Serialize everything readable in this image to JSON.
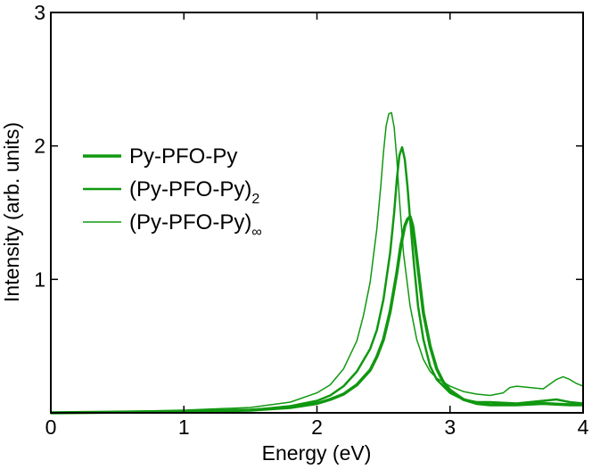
{
  "chart_data": {
    "type": "line",
    "xlabel": "Energy (eV)",
    "ylabel": "Intensity (arb. units)",
    "xlim": [
      0,
      4
    ],
    "ylim": [
      0,
      3
    ],
    "x_ticks": [
      0,
      1,
      2,
      3,
      4
    ],
    "y_ticks": [
      1,
      2,
      3
    ],
    "grid": false,
    "legend_position": "center-left",
    "line_color": "#109810",
    "series": [
      {
        "name": "Py-PFO-Py",
        "legend_main": "Py-PFO-Py",
        "legend_sub": "",
        "style": "thick",
        "x": [
          0.0,
          1.0,
          1.5,
          1.8,
          2.0,
          2.1,
          2.2,
          2.3,
          2.4,
          2.45,
          2.5,
          2.55,
          2.6,
          2.63,
          2.66,
          2.68,
          2.7,
          2.72,
          2.74,
          2.77,
          2.8,
          2.85,
          2.9,
          2.95,
          3.0,
          3.1,
          3.2,
          3.3,
          3.5,
          3.7,
          3.9,
          4.0
        ],
        "values": [
          0.0,
          0.01,
          0.02,
          0.04,
          0.07,
          0.1,
          0.14,
          0.21,
          0.32,
          0.42,
          0.55,
          0.76,
          1.05,
          1.25,
          1.4,
          1.45,
          1.47,
          1.4,
          1.25,
          1.0,
          0.75,
          0.5,
          0.33,
          0.23,
          0.17,
          0.1,
          0.07,
          0.06,
          0.06,
          0.07,
          0.06,
          0.06
        ]
      },
      {
        "name": "(Py-PFO-Py)2",
        "legend_main": "(Py-PFO-Py)",
        "legend_sub": "2",
        "style": "medium",
        "x": [
          0.0,
          1.0,
          1.5,
          1.8,
          2.0,
          2.1,
          2.2,
          2.3,
          2.4,
          2.45,
          2.5,
          2.55,
          2.58,
          2.6,
          2.62,
          2.64,
          2.66,
          2.68,
          2.7,
          2.73,
          2.76,
          2.8,
          2.85,
          2.9,
          3.0,
          3.1,
          3.2,
          3.3,
          3.5,
          3.7,
          3.8,
          3.9,
          4.0
        ],
        "values": [
          0.0,
          0.01,
          0.02,
          0.05,
          0.09,
          0.13,
          0.2,
          0.31,
          0.48,
          0.62,
          0.85,
          1.2,
          1.5,
          1.75,
          1.93,
          1.99,
          1.9,
          1.7,
          1.45,
          1.1,
          0.8,
          0.55,
          0.35,
          0.25,
          0.15,
          0.1,
          0.08,
          0.08,
          0.07,
          0.09,
          0.1,
          0.08,
          0.07
        ]
      },
      {
        "name": "(Py-PFO-Py)∞",
        "legend_main": "(Py-PFO-Py)",
        "legend_sub": "∞",
        "style": "thin",
        "x": [
          0.0,
          1.0,
          1.5,
          1.8,
          2.0,
          2.1,
          2.2,
          2.3,
          2.35,
          2.4,
          2.45,
          2.48,
          2.5,
          2.52,
          2.54,
          2.56,
          2.58,
          2.6,
          2.62,
          2.65,
          2.7,
          2.75,
          2.8,
          2.85,
          2.9,
          3.0,
          3.1,
          3.2,
          3.3,
          3.4,
          3.45,
          3.5,
          3.6,
          3.7,
          3.8,
          3.85,
          3.9,
          3.95,
          4.0
        ],
        "values": [
          0.0,
          0.02,
          0.04,
          0.08,
          0.15,
          0.21,
          0.33,
          0.54,
          0.73,
          0.98,
          1.38,
          1.7,
          1.95,
          2.15,
          2.24,
          2.25,
          2.14,
          1.9,
          1.6,
          1.2,
          0.8,
          0.55,
          0.4,
          0.31,
          0.26,
          0.2,
          0.16,
          0.14,
          0.13,
          0.15,
          0.19,
          0.2,
          0.19,
          0.18,
          0.25,
          0.27,
          0.25,
          0.22,
          0.2
        ]
      }
    ]
  }
}
